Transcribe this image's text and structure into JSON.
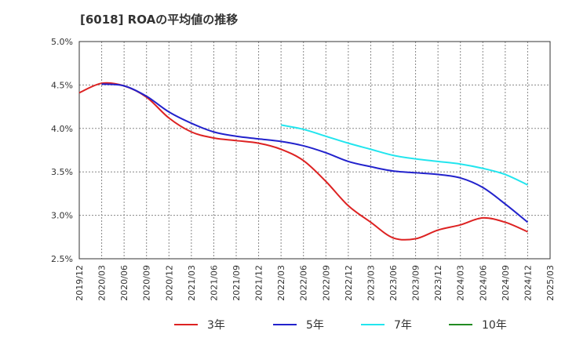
{
  "chart_data": {
    "type": "line",
    "title": "[6018]  ROAの平均値の推移",
    "xlabel": "",
    "ylabel": "",
    "x": [
      "2019/12",
      "2020/03",
      "2020/06",
      "2020/09",
      "2020/12",
      "2021/03",
      "2021/06",
      "2021/09",
      "2021/12",
      "2022/03",
      "2022/06",
      "2022/09",
      "2022/12",
      "2023/03",
      "2023/06",
      "2023/09",
      "2023/12",
      "2024/03",
      "2024/06",
      "2024/09",
      "2024/12",
      "2025/03"
    ],
    "ylim": [
      2.5,
      5.0
    ],
    "yticks": [
      2.5,
      3.0,
      3.5,
      4.0,
      4.5,
      5.0
    ],
    "ytick_labels": [
      "2.5%",
      "3.0%",
      "3.5%",
      "4.0%",
      "4.5%",
      "5.0%"
    ],
    "grid": true,
    "legend_position": "bottom",
    "series": [
      {
        "name": "3年",
        "color": "#dd2222",
        "values": [
          4.41,
          4.52,
          4.49,
          4.36,
          4.12,
          3.96,
          3.89,
          3.86,
          3.83,
          3.76,
          3.63,
          3.39,
          3.11,
          2.92,
          2.74,
          2.73,
          2.83,
          2.89,
          2.97,
          2.92,
          2.81,
          null
        ]
      },
      {
        "name": "5年",
        "color": "#2222cc",
        "values": [
          null,
          4.51,
          4.49,
          4.37,
          4.19,
          4.06,
          3.96,
          3.91,
          3.88,
          3.85,
          3.8,
          3.72,
          3.62,
          3.56,
          3.51,
          3.49,
          3.47,
          3.43,
          3.32,
          3.13,
          2.92,
          null
        ]
      },
      {
        "name": "7年",
        "color": "#22e5ee",
        "values": [
          null,
          null,
          null,
          null,
          null,
          null,
          null,
          null,
          null,
          4.04,
          3.99,
          3.91,
          3.83,
          3.76,
          3.69,
          3.65,
          3.62,
          3.59,
          3.54,
          3.47,
          3.35,
          null
        ]
      },
      {
        "name": "10年",
        "color": "#228b22",
        "values": [
          null,
          null,
          null,
          null,
          null,
          null,
          null,
          null,
          null,
          null,
          null,
          null,
          null,
          null,
          null,
          null,
          null,
          null,
          null,
          null,
          null,
          null
        ]
      }
    ]
  }
}
